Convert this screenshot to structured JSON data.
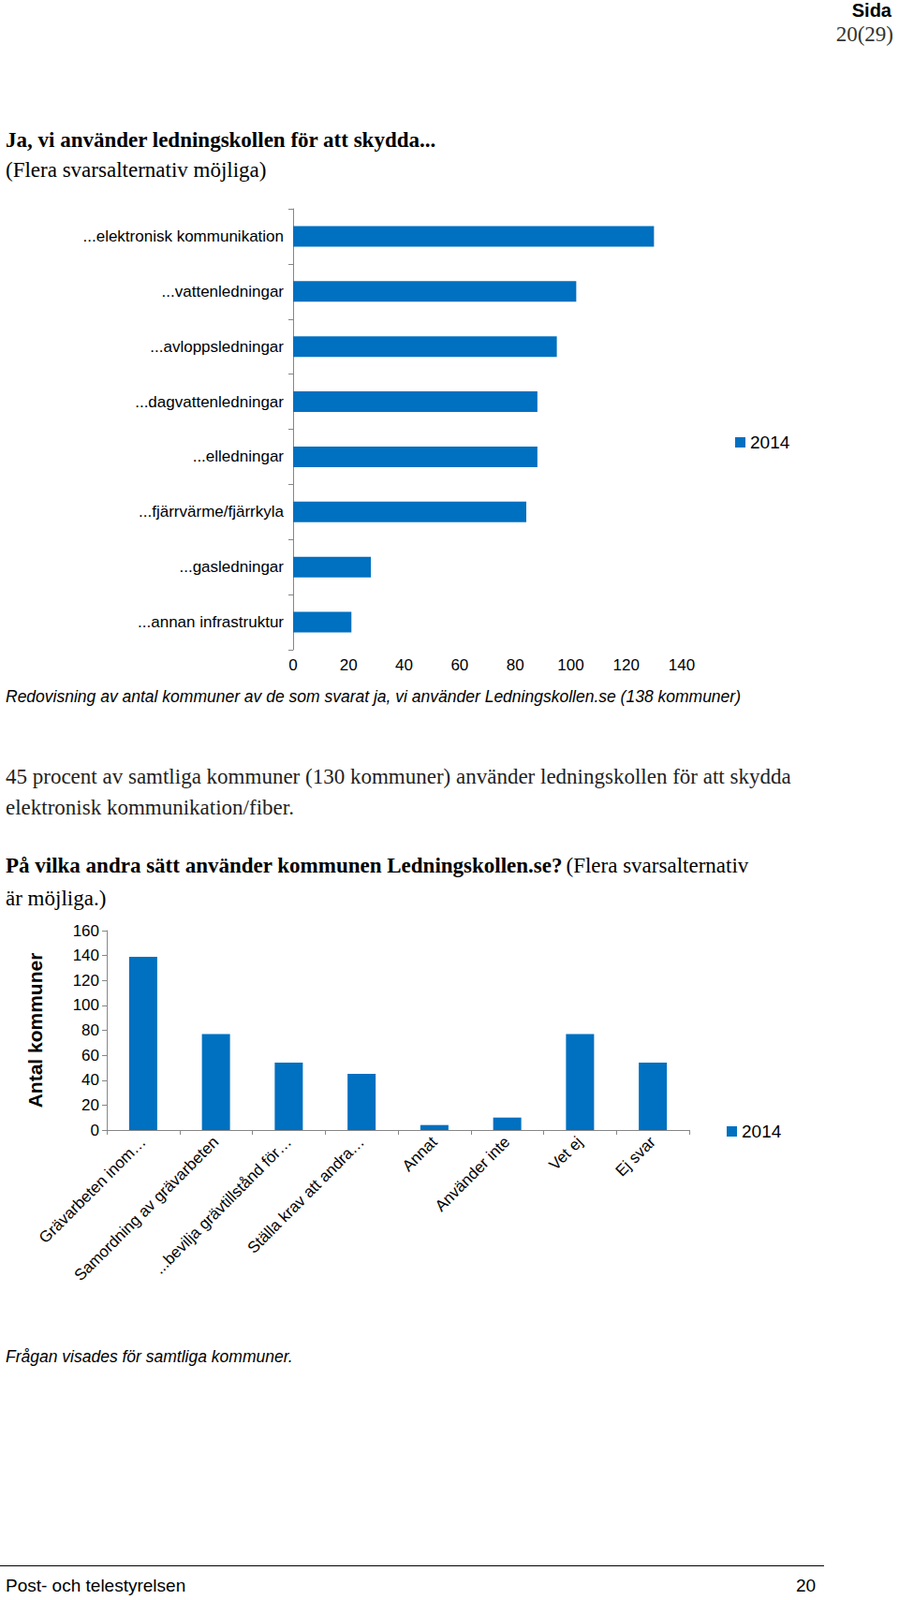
{
  "header": {
    "label": "Sida",
    "page": "20(29)"
  },
  "heading1": "Ja, vi använder ledningskollen för att skydda...",
  "heading1_note": "(Flera svarsalternativ möjliga)",
  "caption1": "Redovisning av antal kommuner av de som svarat ja, vi använder Ledningskollen.se (138 kommuner)",
  "paragraph": "45 procent av samtliga kommuner (130 kommuner) använder ledningskollen för att skydda elektronisk kommunikation/fiber.",
  "heading2": "På vilka andra sätt använder kommunen Ledningskollen.se?",
  "heading2_note": "(Flera svarsalternativ är möjliga.)",
  "caption2": "Frågan visades för samtliga kommuner.",
  "footer": {
    "left": "Post- och telestyrelsen",
    "right": "20"
  },
  "chart_data": [
    {
      "type": "bar",
      "orientation": "horizontal",
      "categories": [
        "...elektronisk kommunikation",
        "...vattenledningar",
        "...avloppsledningar",
        "...dagvattenledningar",
        "...elledningar",
        "...fjärrvärme/fjärrkyla",
        "...gasledningar",
        "...annan infrastruktur"
      ],
      "series": [
        {
          "name": "2014",
          "color": "#0070c0",
          "values": [
            130,
            102,
            95,
            88,
            88,
            84,
            28,
            21
          ]
        }
      ],
      "xlim": [
        0,
        140
      ],
      "xticks": [
        0,
        20,
        40,
        60,
        80,
        100,
        120,
        140
      ],
      "grid": false,
      "legend": "right"
    },
    {
      "type": "bar",
      "categories": [
        "Grävarbeten inom…",
        "Samordning av grävarbeten",
        "...bevilja grävtillstånd för…",
        "Ställa krav att andra…",
        "Annat",
        "Använder inte",
        "Vet ej",
        "Ej svar"
      ],
      "series": [
        {
          "name": "2014",
          "color": "#0070c0",
          "values": [
            139,
            77,
            54,
            45,
            4,
            10,
            77,
            54
          ]
        }
      ],
      "ylabel": "Antal kommuner",
      "ylim": [
        0,
        160
      ],
      "yticks": [
        0,
        20,
        40,
        60,
        80,
        100,
        120,
        140,
        160
      ],
      "grid": false,
      "legend": "right"
    }
  ]
}
